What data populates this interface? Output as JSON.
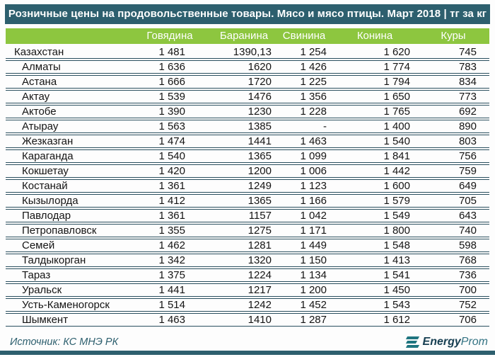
{
  "header": {
    "title": "Розничные цены на продовольственные товары. Мясо и мясо птицы. Март 2018 | тг за кг"
  },
  "chart_data": {
    "type": "table",
    "title": "Розничные цены на продовольственные товары. Мясо и мясо птицы. Март 2018 | тг за кг",
    "unit": "тг за кг",
    "columns": [
      "Говядина",
      "Баранина",
      "Свинина",
      "Конина",
      "Куры"
    ],
    "rows": [
      {
        "label": "Казахстан",
        "values": [
          "1 481",
          "1390,13",
          "1 254",
          "1 620",
          "745"
        ]
      },
      {
        "label": "Алматы",
        "values": [
          "1 636",
          "1620",
          "1 426",
          "1 774",
          "783"
        ]
      },
      {
        "label": "Астана",
        "values": [
          "1 666",
          "1720",
          "1 225",
          "1 794",
          "834"
        ]
      },
      {
        "label": "Актау",
        "values": [
          "1 539",
          "1476",
          "1 356",
          "1 650",
          "773"
        ]
      },
      {
        "label": "Актобе",
        "values": [
          "1 390",
          "1230",
          "1 228",
          "1 765",
          "692"
        ]
      },
      {
        "label": "Атырау",
        "values": [
          "1 563",
          "1385",
          "-",
          "1 400",
          "890"
        ]
      },
      {
        "label": "Жезказган",
        "values": [
          "1 474",
          "1441",
          "1 463",
          "1 540",
          "803"
        ]
      },
      {
        "label": "Караганда",
        "values": [
          "1 540",
          "1365",
          "1 099",
          "1 841",
          "756"
        ]
      },
      {
        "label": "Кокшетау",
        "values": [
          "1 420",
          "1200",
          "1 006",
          "1 442",
          "759"
        ]
      },
      {
        "label": "Костанай",
        "values": [
          "1 361",
          "1249",
          "1 123",
          "1 600",
          "649"
        ]
      },
      {
        "label": "Кызылорда",
        "values": [
          "1 412",
          "1365",
          "1 166",
          "1 579",
          "705"
        ]
      },
      {
        "label": "Павлодар",
        "values": [
          "1 361",
          "1157",
          "1 042",
          "1 549",
          "643"
        ]
      },
      {
        "label": "Петропавловск",
        "values": [
          "1 355",
          "1275",
          "1 171",
          "1 800",
          "740"
        ]
      },
      {
        "label": "Семей",
        "values": [
          "1 462",
          "1281",
          "1 449",
          "1 548",
          "598"
        ]
      },
      {
        "label": "Талдыкорган",
        "values": [
          "1 342",
          "1320",
          "1 150",
          "1 413",
          "768"
        ]
      },
      {
        "label": "Тараз",
        "values": [
          "1 375",
          "1224",
          "1 134",
          "1 541",
          "736"
        ]
      },
      {
        "label": "Уральск",
        "values": [
          "1 441",
          "1217",
          "1 200",
          "1 450",
          "700"
        ]
      },
      {
        "label": "Усть-Каменогорск",
        "values": [
          "1 514",
          "1242",
          "1 452",
          "1 543",
          "752"
        ]
      },
      {
        "label": "Шымкент",
        "values": [
          "1 463",
          "1410",
          "1 287",
          "1 612",
          "706"
        ]
      }
    ]
  },
  "footer": {
    "source": "Источник: КС МНЭ РК",
    "logo": {
      "bold": "Energy",
      "light": "Prom"
    }
  },
  "colors": {
    "header_bg": "#2d5f6e",
    "column_header_bg": "#8dc63f",
    "row_line": "#2a4f5e",
    "footer_text": "#2d5f6e",
    "logo_dark": "#173f52",
    "logo_light": "#337383"
  }
}
